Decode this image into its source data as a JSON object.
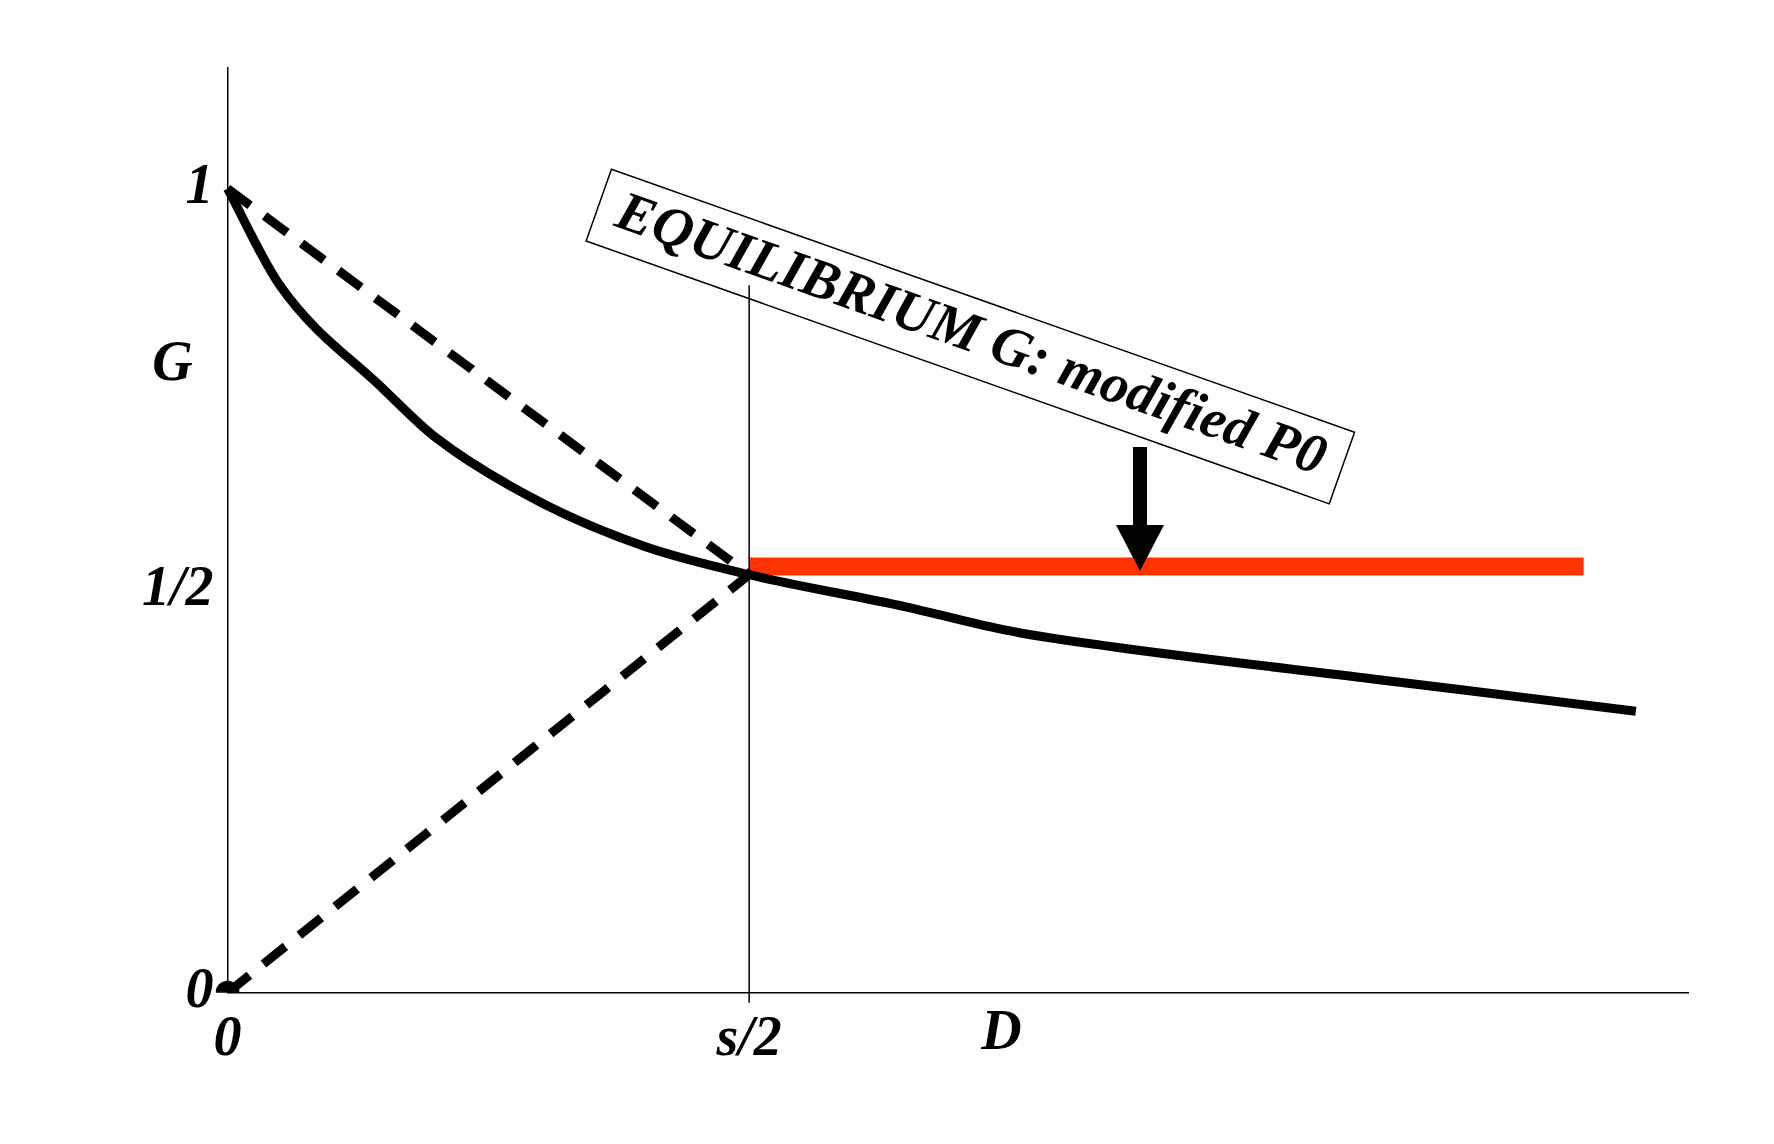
{
  "chart_data": {
    "type": "line",
    "xlabel": "D",
    "ylabel": "G",
    "categories": [
      "0",
      null,
      null,
      null,
      null,
      null,
      null,
      null,
      null,
      null,
      "s/2",
      null,
      null,
      null,
      null,
      null,
      null,
      null,
      null,
      null,
      null,
      null,
      null,
      null,
      null,
      null,
      null,
      null,
      null
    ],
    "ylim": [
      0,
      1.15
    ],
    "yticks": [
      0,
      {
        "value": 0.5,
        "label": "1/2"
      },
      1
    ],
    "grid": false,
    "legend": false,
    "series": [
      {
        "color": "#000000",
        "values": [
          1.0,
          0.88,
          null,
          0.75,
          0.69,
          null,
          0.61,
          null,
          0.555,
          null,
          0.52,
          null,
          null,
          0.48,
          null,
          0.45,
          null,
          0.43,
          null,
          null,
          null,
          null,
          0.39,
          null,
          null,
          null,
          null,
          0.35,
          null
        ],
        "line_style": "solid",
        "marker": "none"
      },
      {
        "color": "#000000",
        "values": [
          1,
          null,
          null,
          null,
          null,
          null,
          null,
          null,
          null,
          null,
          0.52,
          null,
          null,
          null,
          null,
          null,
          null,
          null,
          null,
          null,
          null,
          null,
          null,
          null,
          null,
          null,
          null,
          null,
          null
        ],
        "line_style": "dashed",
        "marker": "none"
      },
      {
        "color": "#000000",
        "values": [
          0,
          null,
          null,
          null,
          null,
          null,
          null,
          null,
          null,
          null,
          0.52,
          null,
          null,
          null,
          null,
          null,
          null,
          null,
          null,
          null,
          null,
          null,
          null,
          null,
          null,
          null,
          null,
          null,
          null
        ],
        "line_style": "dashed",
        "marker": "none"
      },
      {
        "type": "scatter",
        "color": "#000000",
        "values": [
          0,
          null,
          null,
          null,
          null,
          null,
          null,
          null,
          null,
          null,
          null,
          null,
          null,
          null,
          null,
          null,
          null,
          null,
          null,
          null,
          null,
          null,
          null,
          null,
          null,
          null,
          null,
          null,
          null
        ],
        "marker": "circle"
      },
      {
        "color": "#ff3300",
        "values": [
          null,
          null,
          null,
          null,
          null,
          null,
          null,
          null,
          null,
          null,
          0.53,
          null,
          null,
          null,
          null,
          null,
          null,
          null,
          null,
          null,
          null,
          null,
          null,
          null,
          null,
          null,
          0.53,
          null,
          null
        ],
        "line_style": "solid",
        "marker": "none"
      }
    ],
    "ref_lines": [
      {
        "axis": "x",
        "value": "s/2",
        "color": "#000000"
      }
    ],
    "annotations": [
      {
        "text": "EQUILIBRIUM G: modified P0",
        "y": 0.53
      }
    ]
  }
}
